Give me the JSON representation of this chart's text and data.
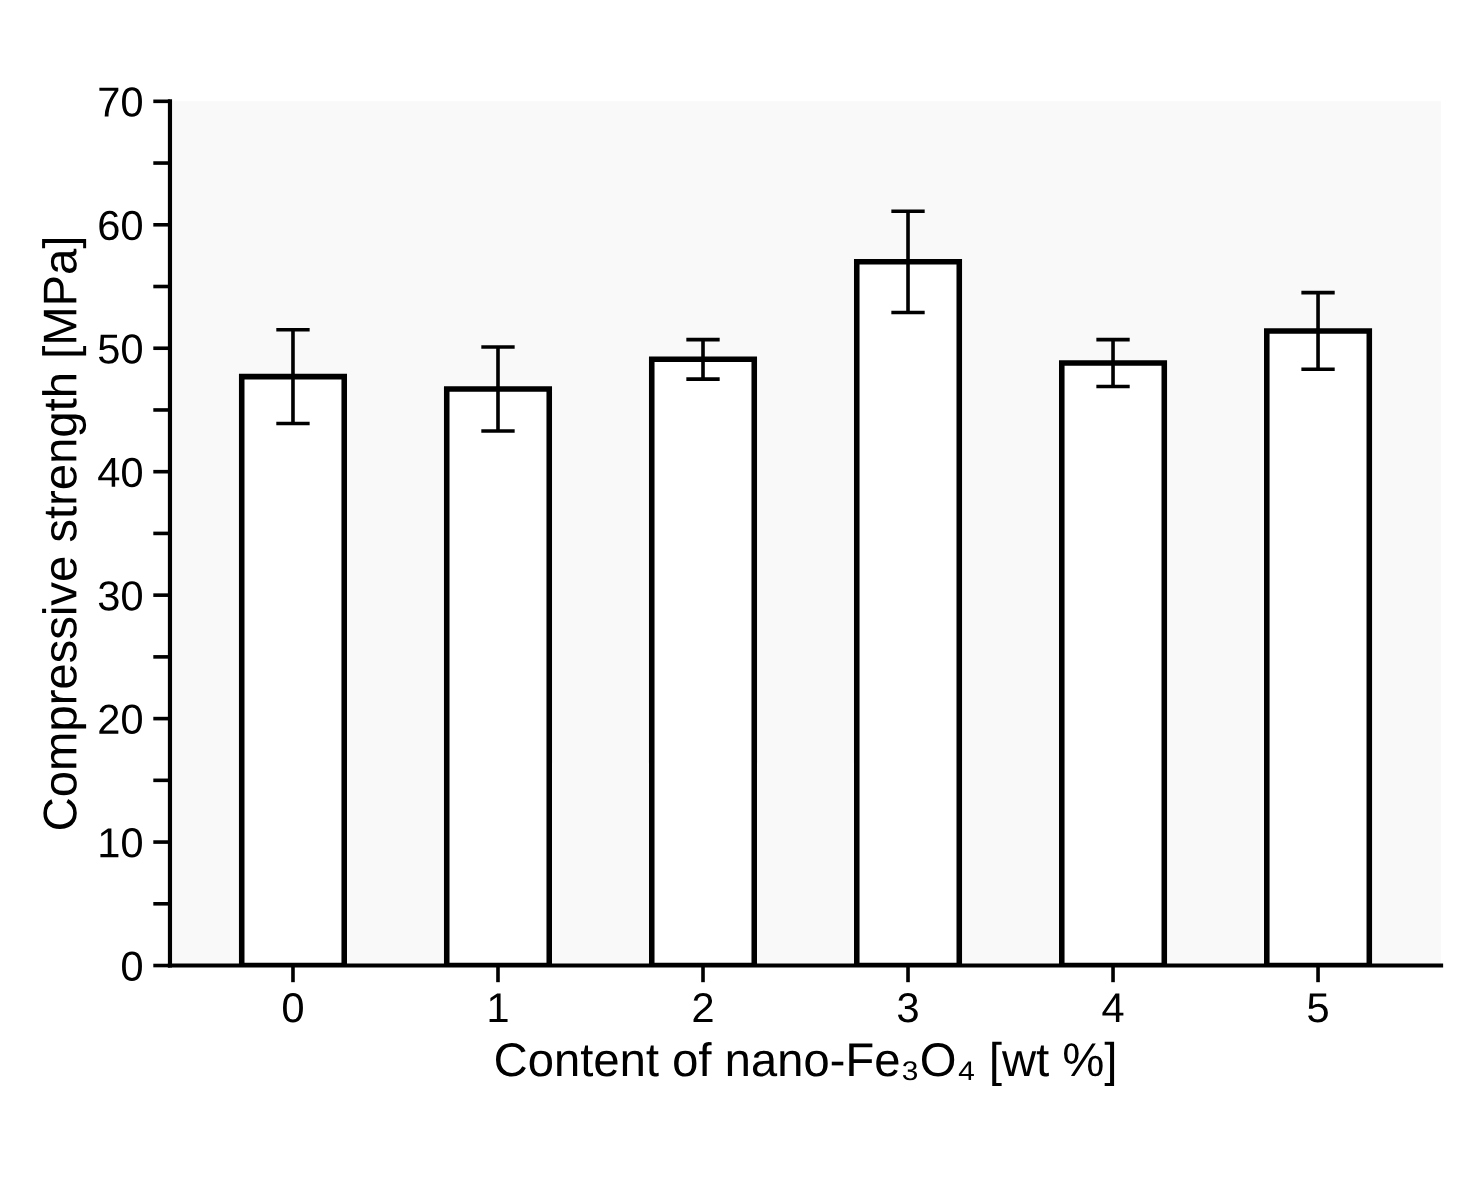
{
  "chart_data": {
    "type": "bar",
    "xlabel": "Content of nano-Fe₃O₄ [wt %]",
    "ylabel": "Compressive strength [MPa]",
    "categories": [
      "0",
      "1",
      "2",
      "3",
      "4",
      "5"
    ],
    "values": [
      47.7,
      46.7,
      49.1,
      57.0,
      48.8,
      51.4
    ],
    "errors": [
      3.8,
      3.4,
      1.6,
      4.1,
      1.9,
      3.1
    ],
    "color": "#ffffff",
    "ylim": [
      0,
      70
    ],
    "yticks": [
      0,
      {
        "value": 5,
        "label": null
      },
      10,
      {
        "value": 15,
        "label": null
      },
      20,
      {
        "value": 25,
        "label": null
      },
      30,
      {
        "value": 35,
        "label": null
      },
      40,
      {
        "value": 45,
        "label": null
      },
      50,
      {
        "value": 55,
        "label": null
      },
      60,
      {
        "value": 65,
        "label": null
      },
      70
    ],
    "grid": false
  }
}
